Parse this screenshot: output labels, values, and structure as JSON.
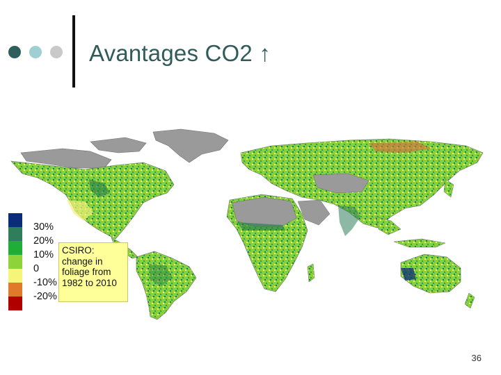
{
  "slide": {
    "title": "Avantages CO2 ↑",
    "page_number": "36"
  },
  "map": {
    "note_lines": [
      "CSIRO:",
      "change in",
      "foliage from",
      "1982 to 2010"
    ],
    "legend": [
      {
        "label": "30%",
        "color": "#0b2c7a"
      },
      {
        "label": "20%",
        "color": "#2e7d5b"
      },
      {
        "label": "10%",
        "color": "#1fae3a"
      },
      {
        "label": "0",
        "color": "#8fd33a"
      },
      {
        "label": "-10%",
        "color": "#f5f57a"
      },
      {
        "label": "-20%",
        "color": "#e07a2a"
      },
      {
        "label": "",
        "color": "#b00000"
      }
    ],
    "colors": {
      "no_data": "#9a9a9a",
      "land_base": "#86d23c",
      "ocean": "#ffffff"
    }
  }
}
